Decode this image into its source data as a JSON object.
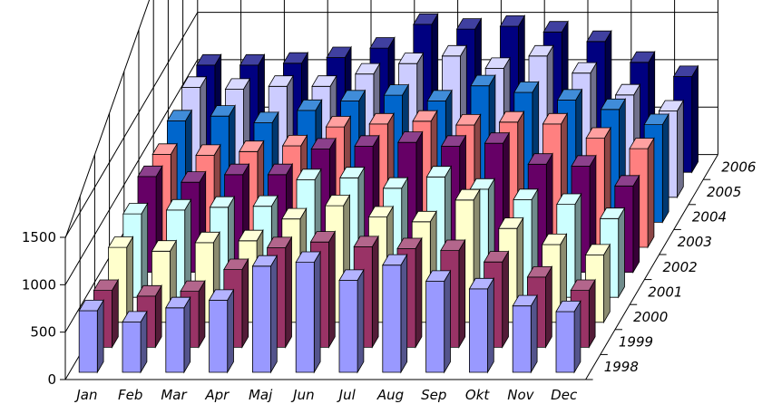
{
  "chart_data": {
    "type": "bar",
    "subtype": "3d-column",
    "title": "",
    "xlabel": "",
    "ylabel": "",
    "categories": [
      "Jan",
      "Feb",
      "Mar",
      "Apr",
      "Maj",
      "Jun",
      "Jul",
      "Aug",
      "Sep",
      "Okt",
      "Nov",
      "Dec"
    ],
    "ylim": [
      0,
      1500
    ],
    "yticks": [
      "0",
      "500",
      "1000",
      "1500"
    ],
    "grid": true,
    "legend": "none",
    "series": [
      {
        "name": "1998",
        "color": "#9999ff",
        "values": [
          650,
          530,
          680,
          760,
          1120,
          1160,
          970,
          1130,
          960,
          880,
          700,
          640
        ]
      },
      {
        "name": "1999",
        "color": "#993366",
        "values": [
          600,
          540,
          590,
          820,
          1050,
          1110,
          1060,
          1040,
          1020,
          900,
          740,
          600
        ]
      },
      {
        "name": "2000",
        "color": "#ffffcc",
        "values": [
          790,
          750,
          840,
          860,
          1090,
          1230,
          1110,
          1060,
          1290,
          990,
          820,
          710
        ]
      },
      {
        "name": "2001",
        "color": "#ccffff",
        "values": [
          880,
          920,
          950,
          960,
          1240,
          1260,
          1150,
          1270,
          1140,
          1030,
          980,
          830
        ]
      },
      {
        "name": "2002",
        "color": "#660066",
        "values": [
          1010,
          950,
          1030,
          1030,
          1300,
          1330,
          1370,
          1330,
          1360,
          1140,
          1120,
          910
        ]
      },
      {
        "name": "2003",
        "color": "#ff8080",
        "values": [
          980,
          970,
          1010,
          1070,
          1270,
          1300,
          1330,
          1290,
          1320,
          1300,
          1150,
          1040
        ]
      },
      {
        "name": "2004",
        "color": "#0066cc",
        "values": [
          1070,
          1120,
          1050,
          1180,
          1280,
          1340,
          1280,
          1440,
          1370,
          1290,
          1190,
          1030
        ]
      },
      {
        "name": "2005",
        "color": "#ccccff",
        "values": [
          1160,
          1140,
          1170,
          1170,
          1300,
          1410,
          1490,
          1360,
          1490,
          1310,
          1080,
          910
        ]
      },
      {
        "name": "2006",
        "color": "#000080",
        "values": [
          1130,
          1130,
          1150,
          1210,
          1310,
          1560,
          1510,
          1540,
          1480,
          1380,
          1160,
          1010
        ]
      }
    ]
  }
}
